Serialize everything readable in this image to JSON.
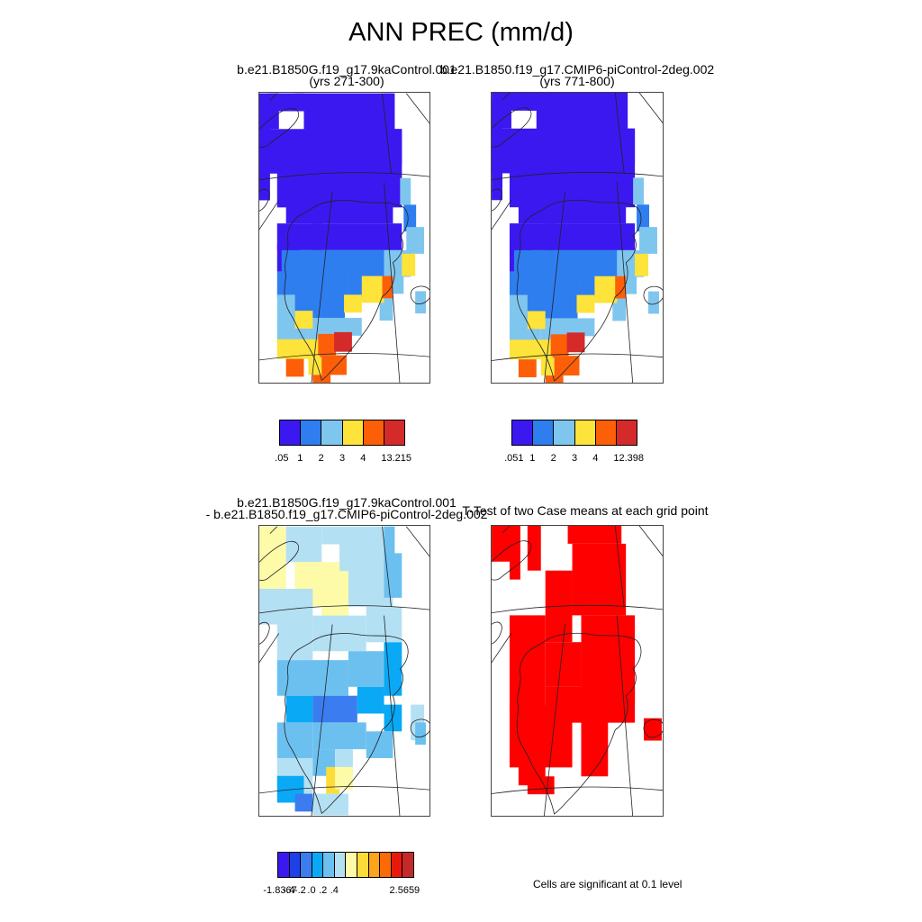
{
  "title": "ANN PREC (mm/d)",
  "panels": {
    "case1": {
      "name": "b.e21.B1850G.f19_g17.9kaControl.001",
      "years": "(yrs 271-300)"
    },
    "case2": {
      "name": "b.e21.B1850.f19_g17.CMIP6-piControl-2deg.002",
      "years": "(yrs 771-800)"
    },
    "diff": {
      "line1": "b.e21.B1850G.f19_g17.9kaControl.001",
      "line2": "- b.e21.B1850.f19_g17.CMIP6-piControl-2deg.002"
    },
    "ttest": {
      "title": "T-Test of two Case means at each grid point",
      "note": "Cells are significant at 0.1 level"
    }
  },
  "colors": {
    "levels6": [
      "#3b18f0",
      "#2f7ef0",
      "#7fc6ef",
      "#fde33a",
      "#fd5e08",
      "#d42a2a"
    ],
    "diff12": [
      "#3b18f0",
      "#1f40e6",
      "#3b7cf0",
      "#0aa9f5",
      "#6cc0f0",
      "#b4e0f4",
      "#fdfaa8",
      "#fddc3a",
      "#fda41a",
      "#fd6a08",
      "#e8180c",
      "#c42a2a"
    ],
    "significant": "#ff0000"
  },
  "colorbars": {
    "case1": {
      "ticks": [
        ".05",
        "1",
        "2",
        "3",
        "4",
        "13.215"
      ]
    },
    "case2": {
      "ticks": [
        ".051",
        "1",
        "2",
        "3",
        "4",
        "12.398"
      ]
    },
    "diff": {
      "ticks": [
        "-1.8367",
        "-.4",
        "-.2",
        ".0",
        ".2",
        ".4",
        "2.5659"
      ]
    }
  }
}
